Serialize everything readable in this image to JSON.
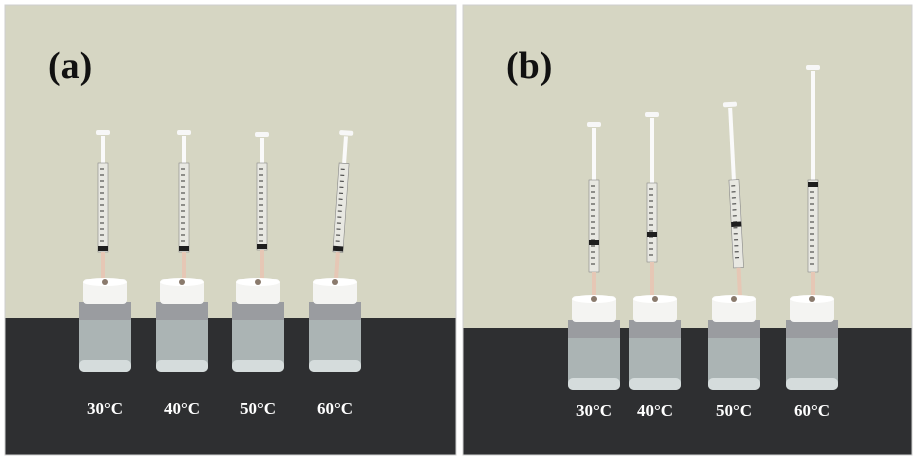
{
  "panels": [
    {
      "label": "(a)",
      "temperatures": [
        "30°C",
        "40°C",
        "50°C",
        "60°C"
      ]
    },
    {
      "label": "(b)",
      "temperatures": [
        "30°C",
        "40°C",
        "50°C",
        "60°C"
      ]
    }
  ],
  "colors": {
    "wall": "#d6d6c3",
    "bench": "#2e2f31",
    "cap": "#f4f4f2",
    "tape": "#9a9ca0",
    "liquid": "#b9c3c3"
  }
}
